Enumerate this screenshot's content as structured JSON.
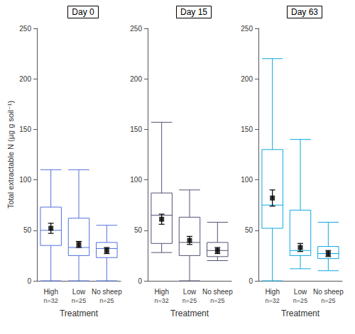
{
  "chart_data": [
    {
      "type": "boxplot",
      "title": "Day 0",
      "xlabel": "Treatment",
      "ylabel": "Total extractable N (µg g soil⁻¹)",
      "categories": [
        "High",
        "Low",
        "No sheep"
      ],
      "annotations": [
        "n=32",
        "n=25",
        "n=25"
      ],
      "series": [
        {
          "type": "boxplot",
          "values": [
            {
              "low": 0,
              "q1": 35,
              "median": 50,
              "q3": 73,
              "high": 110
            },
            {
              "low": 0,
              "q1": 25,
              "median": 33,
              "q3": 62,
              "high": 110
            },
            {
              "low": 0,
              "q1": 23,
              "median": 32,
              "q3": 38,
              "high": 55
            }
          ]
        },
        {
          "type": "scatter",
          "marker": "square",
          "color": "black",
          "values": [
            52,
            36,
            30
          ],
          "errors": [
            5,
            3,
            3
          ]
        }
      ],
      "ylim": [
        0,
        250
      ],
      "yticks": [
        0,
        50,
        100,
        150,
        200,
        250
      ],
      "grid": false
    },
    {
      "type": "boxplot",
      "title": "Day 15",
      "xlabel": "Treatment",
      "categories": [
        "High",
        "Low",
        "No sheep"
      ],
      "annotations": [
        "n=32",
        "n=25",
        "n=25"
      ],
      "series": [
        {
          "type": "boxplot",
          "values": [
            {
              "low": 28,
              "q1": 37,
              "median": 65,
              "q3": 87,
              "high": 157
            },
            {
              "low": 0,
              "q1": 25,
              "median": 38,
              "q3": 63,
              "high": 90
            },
            {
              "low": 20,
              "q1": 24,
              "median": 30,
              "q3": 38,
              "high": 58
            }
          ]
        },
        {
          "type": "scatter",
          "marker": "square",
          "color": "black",
          "values": [
            61,
            40,
            30
          ],
          "errors": [
            5,
            4,
            3
          ]
        }
      ],
      "ylim": [
        0,
        250
      ],
      "yticks": [
        0,
        50,
        100,
        150,
        200,
        250
      ],
      "grid": false
    },
    {
      "type": "boxplot",
      "title": "Day 63",
      "xlabel": "Treatment",
      "categories": [
        "High",
        "Low",
        "No sheep"
      ],
      "annotations": [
        "n=32",
        "n=25",
        "n=25"
      ],
      "series": [
        {
          "type": "boxplot",
          "values": [
            {
              "low": 0,
              "q1": 52,
              "median": 75,
              "q3": 130,
              "high": 220
            },
            {
              "low": 12,
              "q1": 25,
              "median": 30,
              "q3": 70,
              "high": 140
            },
            {
              "low": 10,
              "q1": 22,
              "median": 27,
              "q3": 34,
              "high": 58
            }
          ]
        },
        {
          "type": "scatter",
          "marker": "square",
          "color": "black",
          "values": [
            82,
            33,
            27
          ],
          "errors": [
            8,
            4,
            3
          ]
        }
      ],
      "ylim": [
        0,
        250
      ],
      "yticks": [
        0,
        50,
        100,
        150,
        200,
        250
      ],
      "grid": false
    }
  ]
}
